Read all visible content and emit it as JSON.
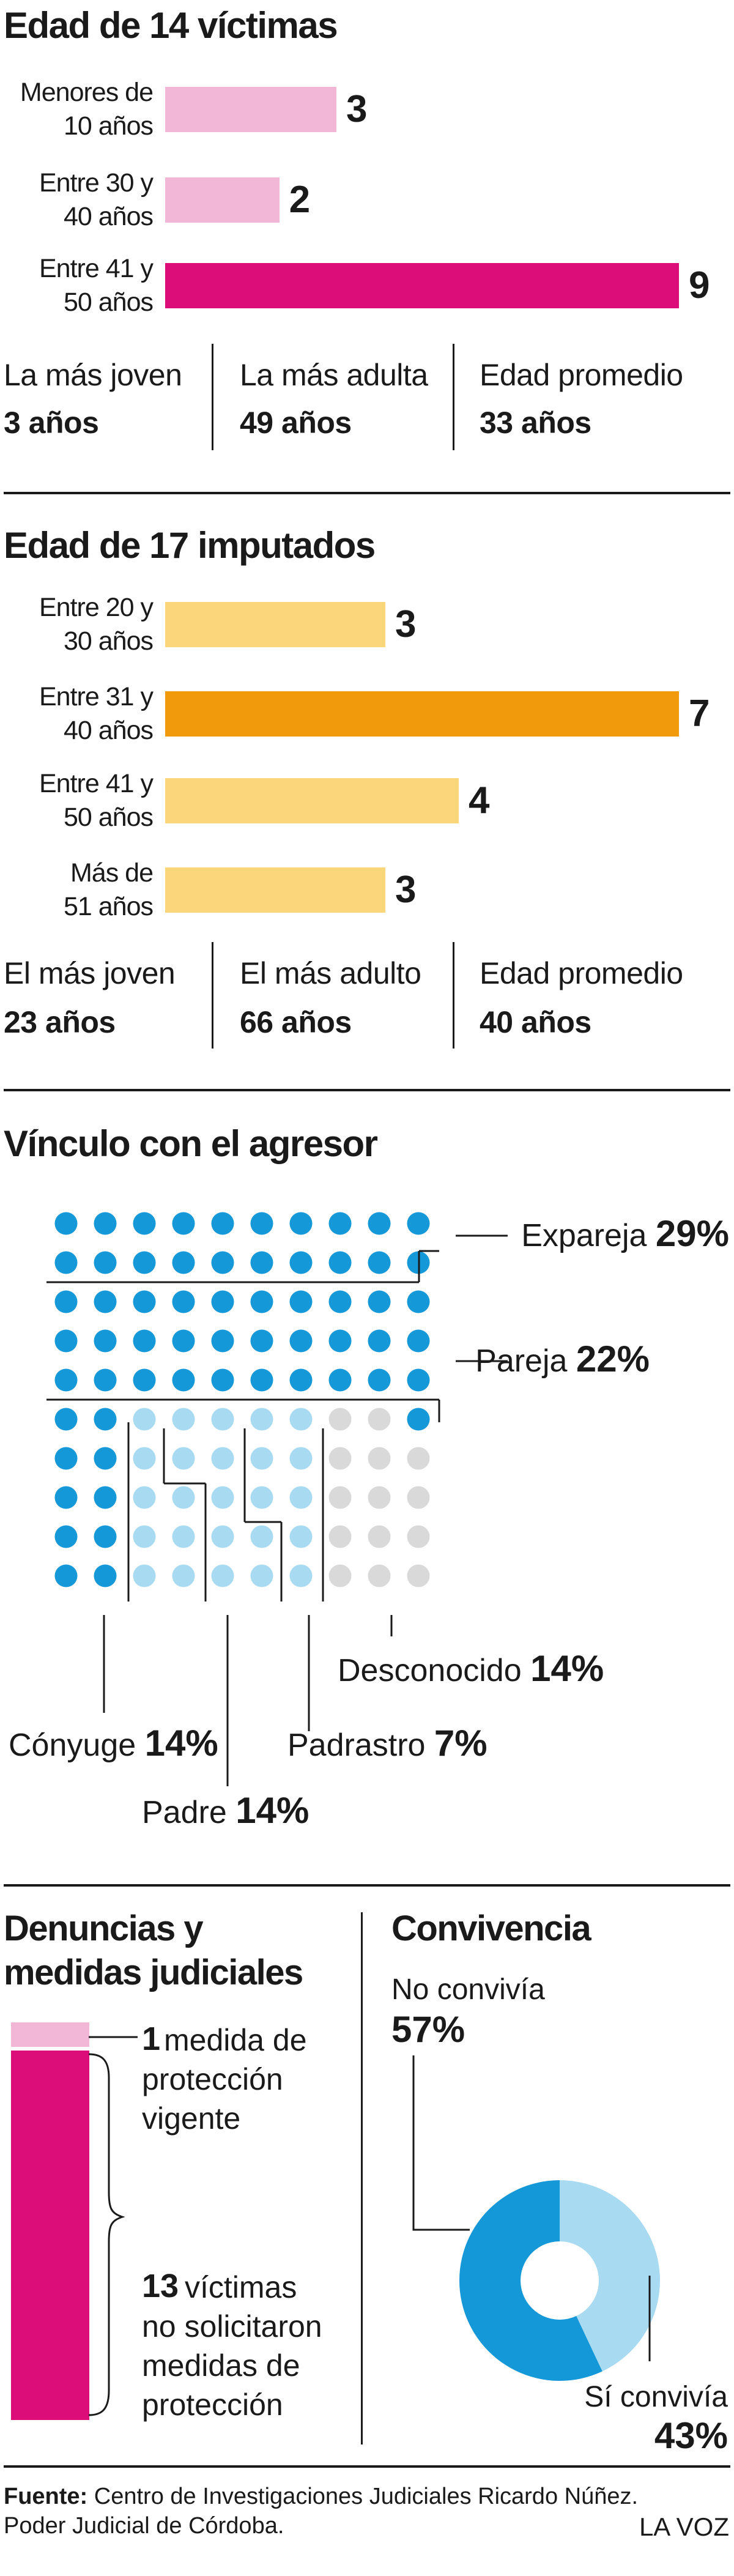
{
  "colors": {
    "bar_light_pink": "#f2b6d6",
    "bar_magenta": "#dc0c78",
    "bar_light_yellow": "#fcd67a",
    "bar_orange": "#f09a0c",
    "dot_blue": "#1598d8",
    "dot_light_blue": "#a8daf2",
    "dot_gray": "#d9d9d9",
    "text": "#1a1a1a"
  },
  "victims": {
    "title": "Edad de 14 víctimas",
    "stats": [
      {
        "label": "La más joven",
        "value": "3 años"
      },
      {
        "label": "La más adulta",
        "value": "49 años"
      },
      {
        "label": "Edad promedio",
        "value": "33 años"
      }
    ]
  },
  "accused": {
    "title": "Edad de 17 imputados",
    "stats": [
      {
        "label": "El más joven",
        "value": "23 años"
      },
      {
        "label": "El más adulto",
        "value": "66 años"
      },
      {
        "label": "Edad promedio",
        "value": "40 años"
      }
    ]
  },
  "relationship": {
    "title": "Vínculo con el agresor"
  },
  "complaints": {
    "title_line1": "Denuncias y",
    "title_line2": "medidas judiciales",
    "item1_number": "1",
    "item1_text_line1": "medida de",
    "item1_text_line2": "protección",
    "item1_text_line3": "vigente",
    "item2_number": "13",
    "item2_text_line1": "víctimas",
    "item2_text_line2": "no solicitaron",
    "item2_text_line3": "medidas de",
    "item2_text_line4": "protección"
  },
  "cohabitation": {
    "title": "Convivencia"
  },
  "footer": {
    "source_bold": "Fuente:",
    "source_line1": "Centro de Investigaciones Judiciales Ricardo Núñez.",
    "source_line2": "Poder Judicial de Córdoba.",
    "brand": "LA VOZ"
  },
  "chart_data": [
    {
      "type": "bar",
      "title": "Edad de 14 víctimas",
      "categories": [
        "Menores de 10 años",
        "Entre 30 y 40 años",
        "Entre 41 y 50 años"
      ],
      "category_lines": [
        [
          "Menores de",
          "10 años"
        ],
        [
          "Entre 30 y",
          "40 años"
        ],
        [
          "Entre 41 y",
          "50 años"
        ]
      ],
      "values": [
        3,
        2,
        9
      ],
      "colors": [
        "#f2b6d6",
        "#f2b6d6",
        "#dc0c78"
      ],
      "xlim": [
        0,
        9
      ]
    },
    {
      "type": "bar",
      "title": "Edad de 17 imputados",
      "categories": [
        "Entre 20 y 30 años",
        "Entre 31 y 40 años",
        "Entre 41 y 50 años",
        "Más de 51 años"
      ],
      "category_lines": [
        [
          "Entre 20 y",
          "30 años"
        ],
        [
          "Entre 31 y",
          "40 años"
        ],
        [
          "Entre 41 y",
          "50 años"
        ],
        [
          "Más de",
          "51 años"
        ]
      ],
      "values": [
        3,
        7,
        4,
        3
      ],
      "colors": [
        "#fcd67a",
        "#f09a0c",
        "#fcd67a",
        "#fcd67a"
      ],
      "xlim": [
        0,
        7
      ]
    },
    {
      "type": "waffle",
      "title": "Vínculo con el agresor",
      "grid": [
        10,
        10
      ],
      "series": [
        {
          "name": "Expareja",
          "percent": "29%",
          "value": 29,
          "color": "#1598d8"
        },
        {
          "name": "Pareja",
          "percent": "22%",
          "value": 22,
          "color": "#1598d8"
        },
        {
          "name": "Cónyuge",
          "percent": "14%",
          "value": 14,
          "color": "#1598d8"
        },
        {
          "name": "Padre",
          "percent": "14%",
          "value": 14,
          "color": "#a8daf2"
        },
        {
          "name": "Padrastro",
          "percent": "7%",
          "value": 7,
          "color": "#a8daf2"
        },
        {
          "name": "Desconocido",
          "percent": "14%",
          "value": 14,
          "color": "#d9d9d9"
        }
      ]
    },
    {
      "type": "bar",
      "title": "Denuncias y medidas judiciales",
      "orientation": "stacked-vertical",
      "series": [
        {
          "name": "medida de protección vigente",
          "value": 1,
          "color": "#f2b6d6"
        },
        {
          "name": "víctimas no solicitaron medidas de protección",
          "value": 13,
          "color": "#dc0c78"
        }
      ]
    },
    {
      "type": "pie",
      "title": "Convivencia",
      "donut": true,
      "slices": [
        {
          "name": "No convivía",
          "percent": "57%",
          "value": 57,
          "color": "#1598d8"
        },
        {
          "name": "Sí convivía",
          "percent": "43%",
          "value": 43,
          "color": "#a8daf2"
        }
      ]
    }
  ]
}
